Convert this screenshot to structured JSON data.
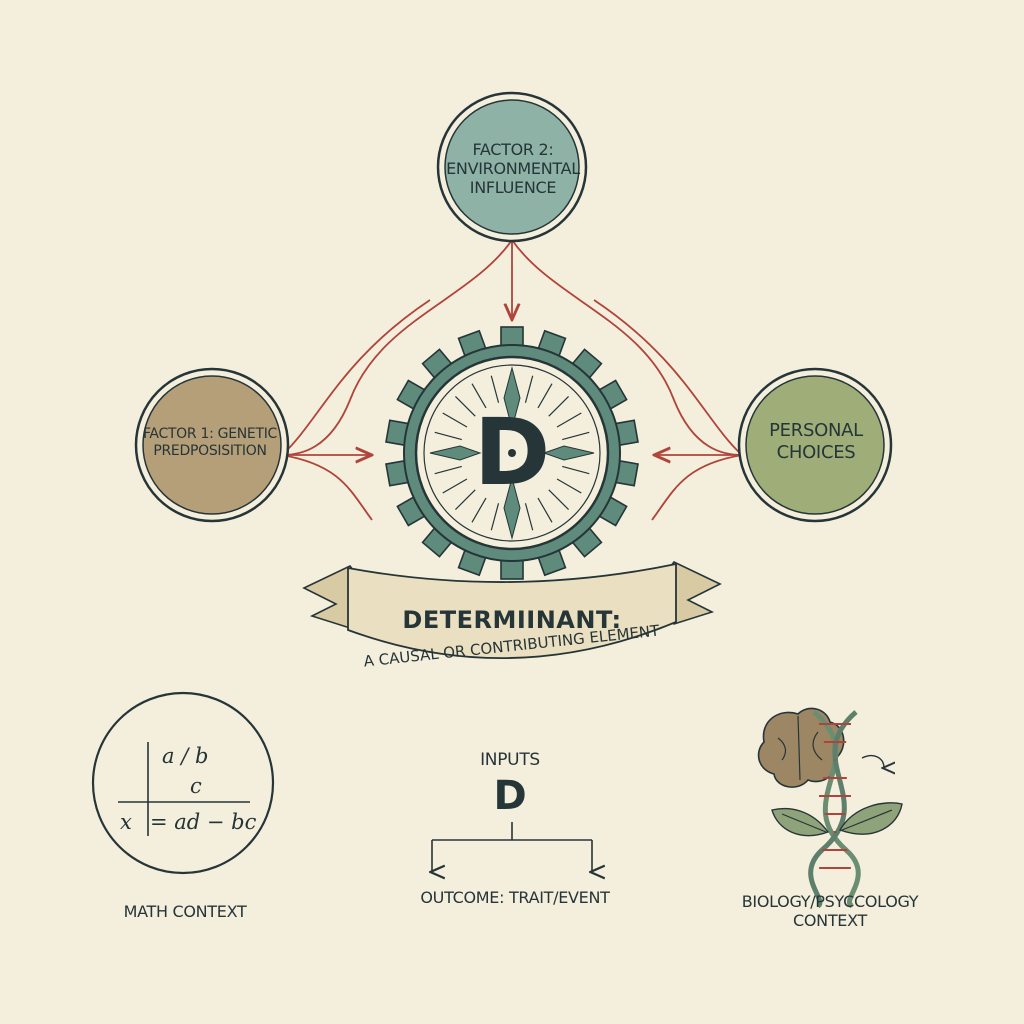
{
  "nodes": {
    "factor2": {
      "label": "FACTOR 2: ENVIRONMENTAL INFLUENCE",
      "color": "#8fb2a6"
    },
    "factor1": {
      "line1": "FACTOR 1: GENETIC",
      "line2": "PREDPOSISITION",
      "color": "#b59f78"
    },
    "personal": {
      "label": "PERSONAL CHOICES",
      "color": "#9fae79"
    }
  },
  "center": {
    "letter": "D",
    "gear_color": "#5e8b7c"
  },
  "banner": {
    "title": "DETERMIINANT:",
    "subtitle": "A CAUSAL OR CONTRIBUTING ELEMENT",
    "color": "#eadfc0"
  },
  "math_context": {
    "label": "MATH CONTEXT",
    "expr1": "a / b",
    "expr2": "c",
    "expr3": "x",
    "expr4": "= ad − bc"
  },
  "flow": {
    "inputs": "INPUTS",
    "letter": "D",
    "outcome": "OUTCOME: TRAIT/EVENT"
  },
  "bio_context": {
    "label": "BIOLOGY/PSYCCOLOGY CONTEXT"
  },
  "colors": {
    "arrow": "#b0443a",
    "ink": "#263538",
    "paper": "#f4eedd"
  }
}
